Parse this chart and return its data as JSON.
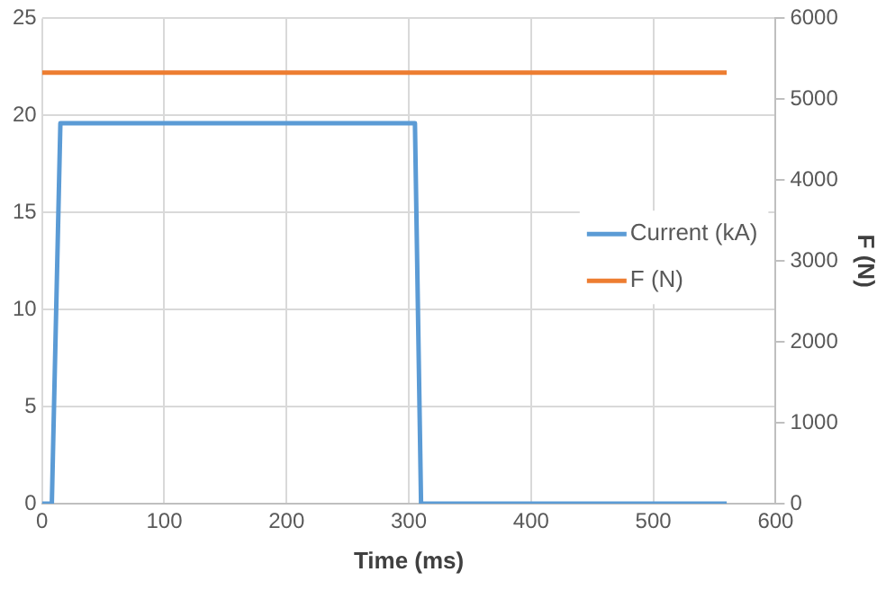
{
  "chart_data": {
    "type": "line",
    "xlabel": "Time (ms)",
    "y2label": "F (N)",
    "xlim": [
      0,
      600
    ],
    "xticks": [
      0,
      100,
      200,
      300,
      400,
      500,
      600
    ],
    "ylim": [
      0,
      25
    ],
    "yticks": [
      0,
      5,
      10,
      15,
      20,
      25
    ],
    "y2lim": [
      0,
      6000
    ],
    "y2ticks": [
      0,
      1000,
      2000,
      3000,
      4000,
      5000,
      6000
    ],
    "grid": true,
    "legend": "right",
    "marker": "none",
    "line_style": "solid",
    "series": [
      {
        "name": "Current (kA)",
        "color": "#5b9bd5",
        "x": [
          0,
          8,
          15,
          305,
          310,
          560
        ],
        "values": [
          0,
          0,
          19.6,
          19.6,
          0,
          0
        ]
      },
      {
        "name": "F (N)",
        "color": "#ed7d31",
        "axis": "y2",
        "x": [
          0,
          560
        ],
        "values": [
          5330,
          5330
        ]
      }
    ]
  }
}
